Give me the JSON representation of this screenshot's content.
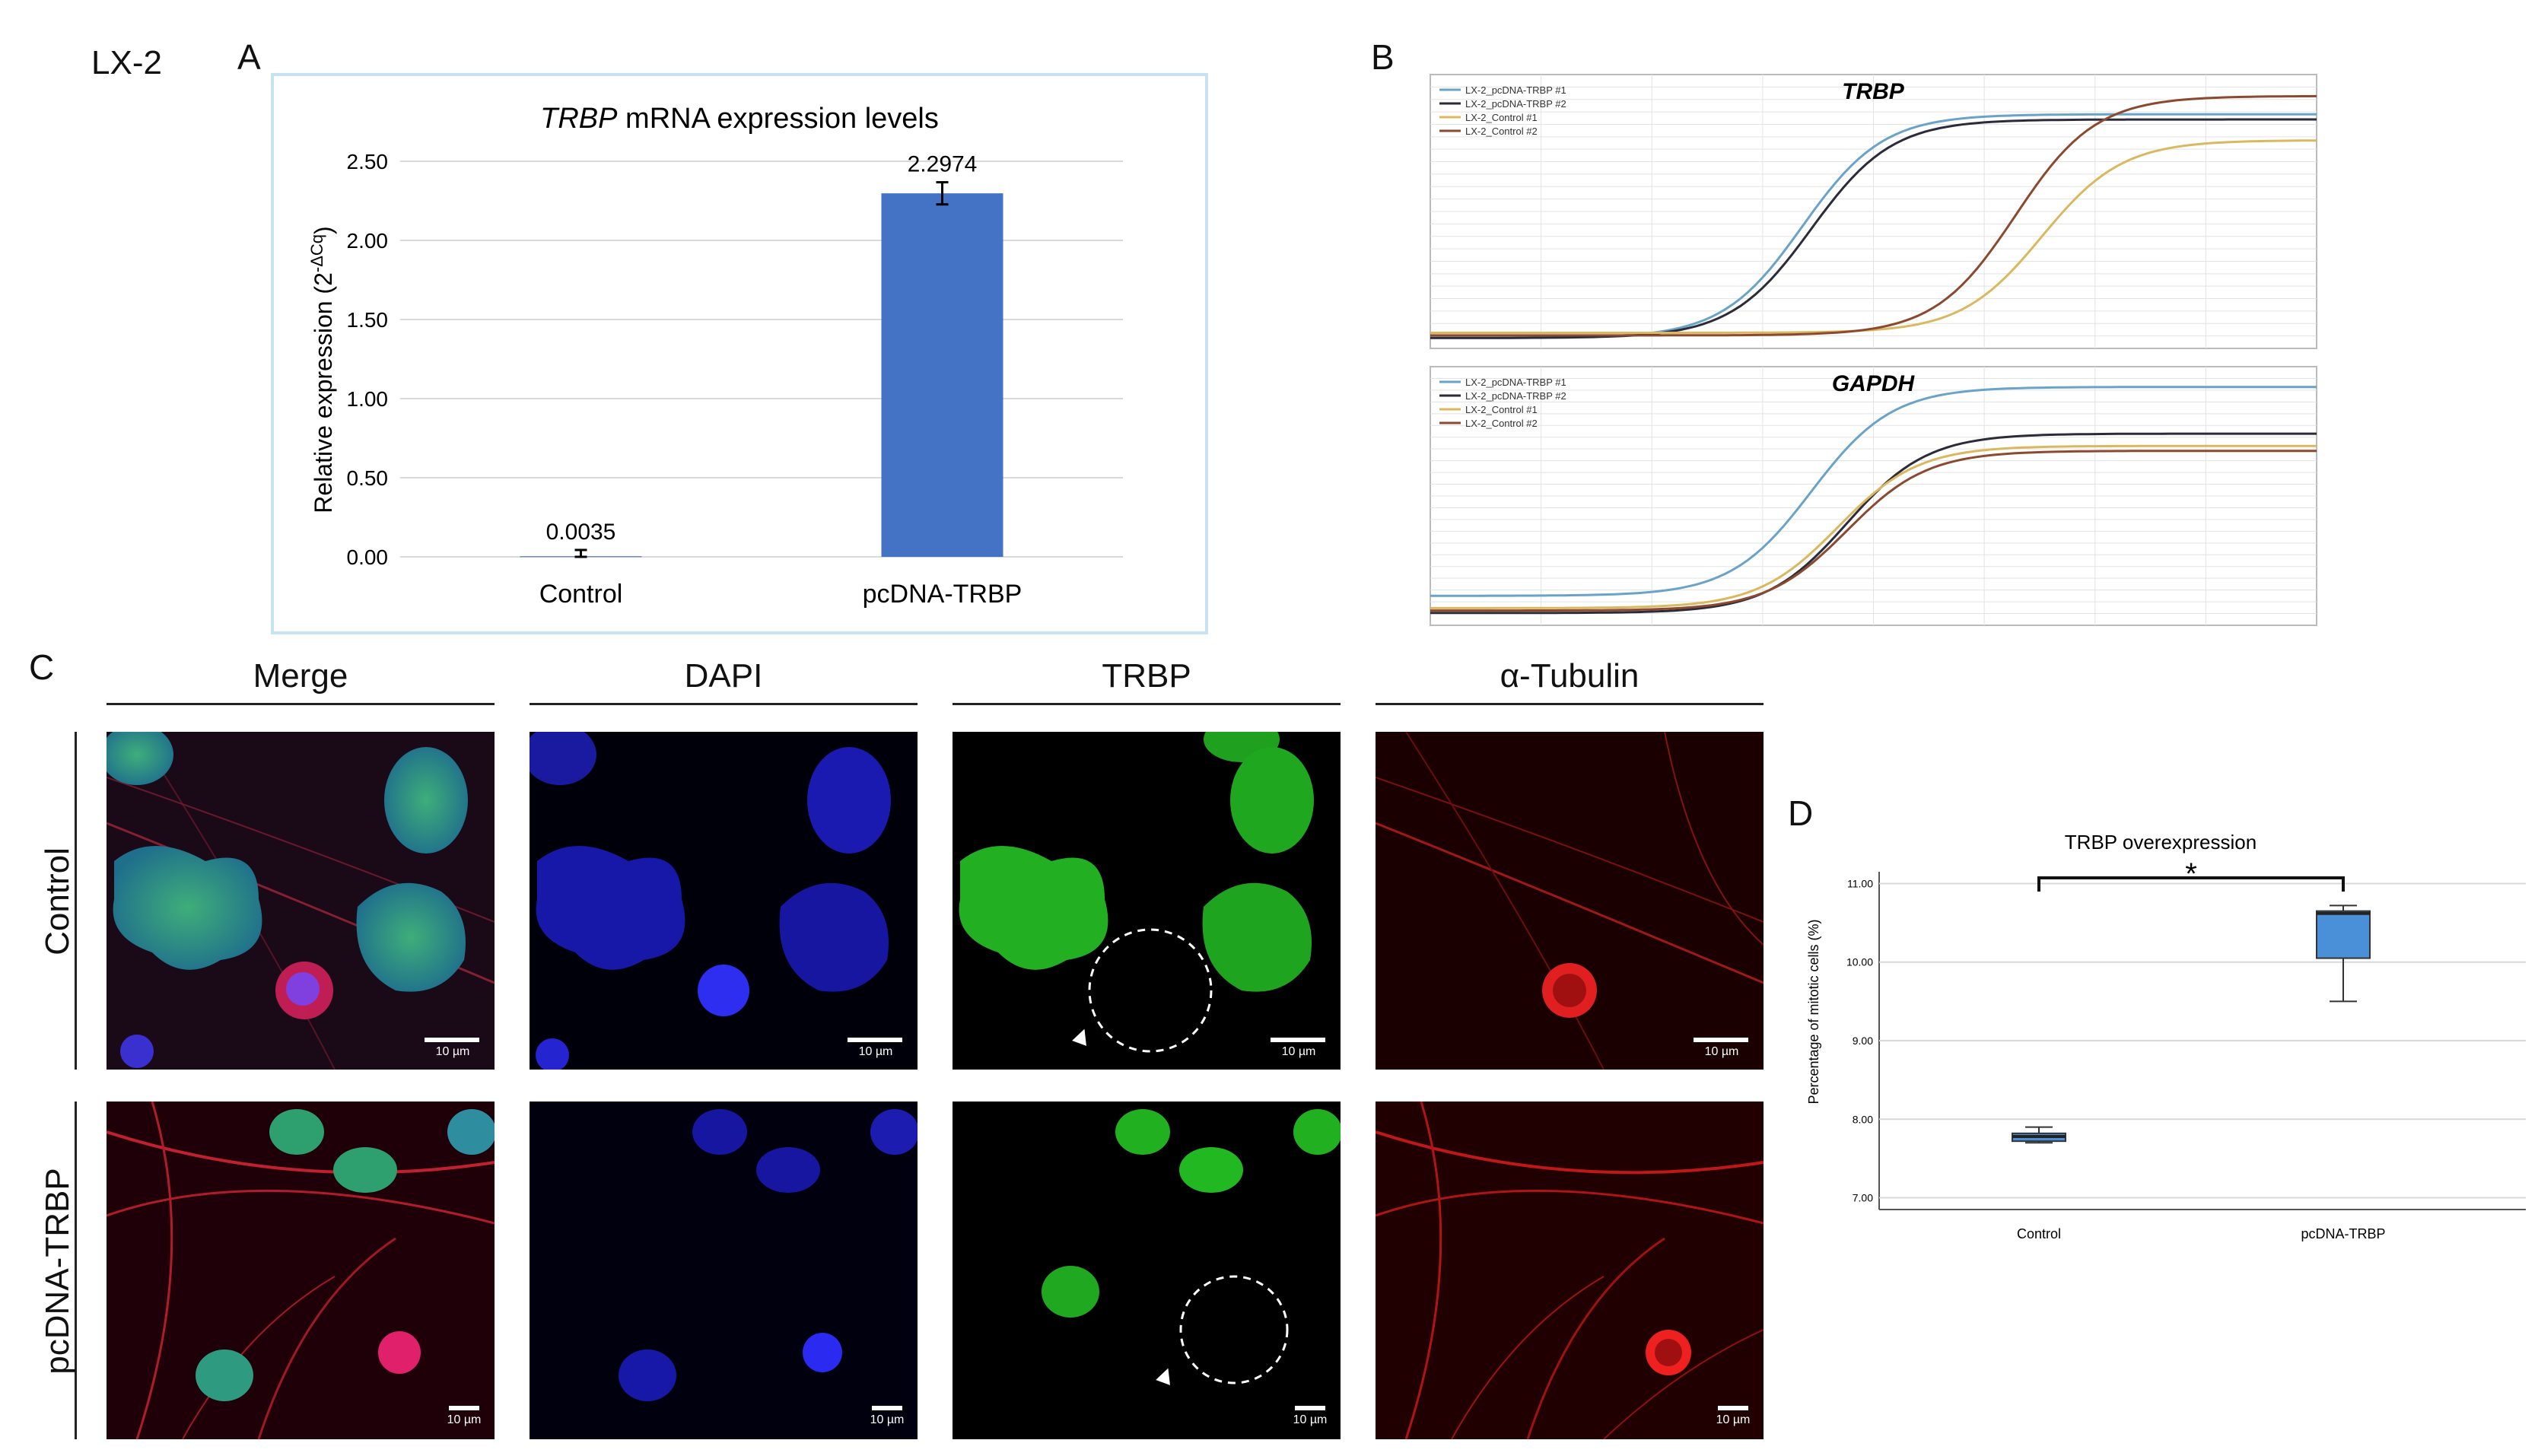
{
  "cell_line": "LX-2",
  "panel_letters": {
    "a": "A",
    "b": "B",
    "c": "C",
    "d": "D"
  },
  "panelA": {
    "title_italic": "TRBP",
    "title_rest": " mRNA expression levels",
    "ylabel": "Relative expression (2",
    "ylabel_sup": "-ΔCq",
    "ylabel_close": ")",
    "colors": {
      "bar": "#4472c4",
      "grid": "#d9d9d9",
      "frame": "#c7e3ef"
    }
  },
  "panelB": {
    "charts": [
      {
        "title": "TRBP"
      },
      {
        "title": "GAPDH"
      }
    ],
    "legend": [
      "LX-2_pcDNA-TRBP #1",
      "LX-2_pcDNA-TRBP #2",
      "LX-2_Control #1",
      "LX-2_Control #2"
    ],
    "legend_colors": [
      "#6aa3c8",
      "#2b2b3a",
      "#d9b860",
      "#8b4a30"
    ]
  },
  "panelC": {
    "columns": [
      "Merge",
      "DAPI",
      "TRBP",
      "α-Tubulin"
    ],
    "rows": [
      "Control",
      "pcDNA-TRBP"
    ],
    "scale_label": "10 µm"
  },
  "panelD": {
    "title": "TRBP overexpression",
    "ylabel": "Percentage of mitotic cells (%)",
    "yticks": [
      "7.00",
      "8.00",
      "9.00",
      "10.00",
      "11.00"
    ],
    "significance": "*",
    "colors": {
      "box": "#4a90d9"
    }
  },
  "chart_data": [
    {
      "type": "bar",
      "title": "TRBP mRNA expression levels",
      "ylabel": "Relative expression (2-ΔCq)",
      "categories": [
        "Control",
        "pcDNA-TRBP"
      ],
      "values": [
        0.0035,
        2.2974
      ],
      "value_labels": [
        "0.0035",
        "2.2974"
      ],
      "error": [
        0.04,
        0.07
      ],
      "ylim": [
        0,
        2.5
      ],
      "yticks": [
        "0.00",
        "0.50",
        "1.00",
        "1.50",
        "2.00",
        "2.50"
      ],
      "grid": true
    },
    {
      "type": "line",
      "title": "TRBP",
      "note": "qPCR amplification curves; fluorescence vs cycle (unlabeled tiny axes)",
      "x": [
        0,
        0.5,
        0.8,
        0.9,
        1.0
      ],
      "series": [
        {
          "name": "LX-2_pcDNA-TRBP #1",
          "midpoint": 0.42,
          "plateau": 0.9,
          "baseline": 0.04
        },
        {
          "name": "LX-2_pcDNA-TRBP #2",
          "midpoint": 0.43,
          "plateau": 0.88,
          "baseline": 0.04
        },
        {
          "name": "LX-2_Control #1",
          "midpoint": 0.69,
          "plateau": 0.8,
          "baseline": 0.06
        },
        {
          "name": "LX-2_Control #2",
          "midpoint": 0.66,
          "plateau": 0.97,
          "baseline": 0.05
        }
      ]
    },
    {
      "type": "line",
      "title": "GAPDH",
      "note": "qPCR amplification curves; fluorescence vs cycle (unlabeled tiny axes)",
      "series": [
        {
          "name": "LX-2_pcDNA-TRBP #1",
          "midpoint": 0.43,
          "plateau": 0.97,
          "baseline": 0.12
        },
        {
          "name": "LX-2_pcDNA-TRBP #2",
          "midpoint": 0.47,
          "plateau": 0.78,
          "baseline": 0.05
        },
        {
          "name": "LX-2_Control #1",
          "midpoint": 0.46,
          "plateau": 0.73,
          "baseline": 0.07
        },
        {
          "name": "LX-2_Control #2",
          "midpoint": 0.47,
          "plateau": 0.71,
          "baseline": 0.06
        }
      ]
    },
    {
      "type": "box",
      "title": "TRBP overexpression",
      "ylabel": "Percentage of mitotic cells (%)",
      "categories": [
        "Control",
        "pcDNA-TRBP"
      ],
      "boxes": [
        {
          "min": 7.7,
          "q1": 7.72,
          "median": 7.78,
          "q3": 7.82,
          "max": 7.9
        },
        {
          "min": 9.5,
          "q1": 10.05,
          "median": 10.62,
          "q3": 10.65,
          "max": 10.72
        }
      ],
      "ylim": [
        6.85,
        11.15
      ],
      "significance": "*"
    }
  ]
}
